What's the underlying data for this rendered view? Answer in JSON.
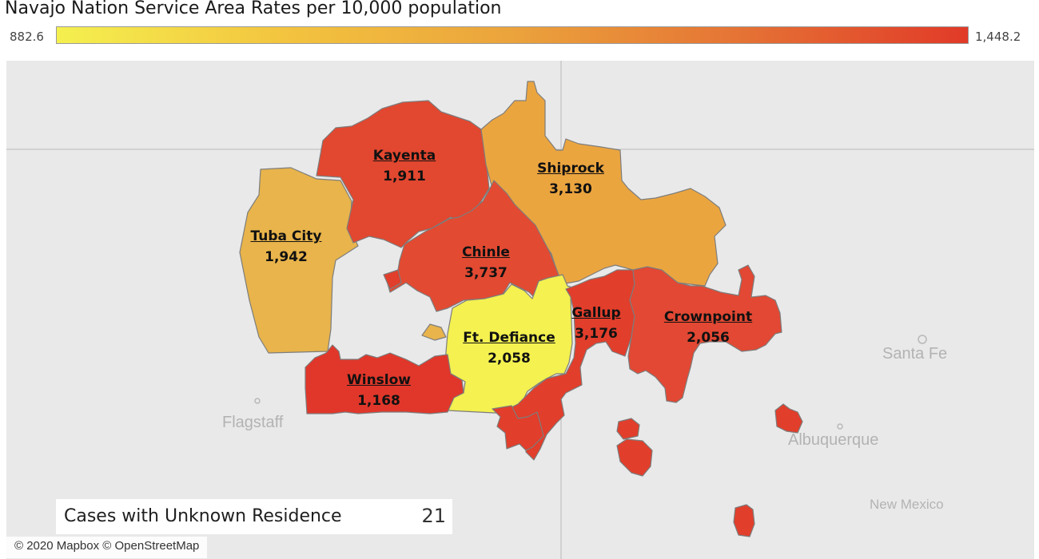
{
  "title": "Navajo Nation Service Area Rates per 10,000 population",
  "legend": {
    "min_label": "882.6",
    "max_label": "1,448.2",
    "colors": [
      "#f4f04f",
      "#f3c43f",
      "#eba33c",
      "#e57335",
      "#e13a28"
    ]
  },
  "regions": [
    {
      "name": "Kayenta",
      "value": "1,911",
      "color": "#e2472f"
    },
    {
      "name": "Shiprock",
      "value": "3,130",
      "color": "#eba53f"
    },
    {
      "name": "Tuba City",
      "value": "1,942",
      "color": "#e8b44b"
    },
    {
      "name": "Chinle",
      "value": "3,737",
      "color": "#e24a32"
    },
    {
      "name": "Ft. Defiance",
      "value": "2,058",
      "color": "#f4f150"
    },
    {
      "name": "Gallup",
      "value": "3,176",
      "color": "#e13e2b"
    },
    {
      "name": "Crownpoint",
      "value": "2,056",
      "color": "#e24833"
    },
    {
      "name": "Winslow",
      "value": "1,168",
      "color": "#e0372a"
    }
  ],
  "places": {
    "flagstaff": "Flagstaff",
    "santa_fe": "Santa Fe",
    "albuquerque": "Albuquerque",
    "new_mexico": "New Mexico"
  },
  "unknown_residence": {
    "label": "Cases with Unknown Residence",
    "value": "21"
  },
  "attribution": "© 2020 Mapbox © OpenStreetMap"
}
